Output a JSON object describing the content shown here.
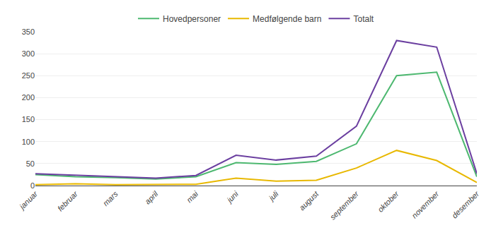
{
  "chart_data": {
    "type": "line",
    "categories": [
      "januar",
      "februar",
      "mars",
      "april",
      "mai",
      "juni",
      "juli",
      "august",
      "september",
      "oktober",
      "november",
      "desember"
    ],
    "series": [
      {
        "name": "Hovedpersoner",
        "color": "#4db870",
        "values": [
          25,
          20,
          18,
          15,
          20,
          52,
          48,
          55,
          95,
          250,
          258,
          20
        ]
      },
      {
        "name": "Medfølgende barn",
        "color": "#e8b800",
        "values": [
          2,
          4,
          2,
          2,
          3,
          17,
          10,
          12,
          40,
          80,
          57,
          7
        ]
      },
      {
        "name": "Totalt",
        "color": "#6b3fa0",
        "values": [
          27,
          24,
          20,
          17,
          23,
          69,
          58,
          67,
          135,
          330,
          315,
          27
        ]
      }
    ],
    "ylim": [
      0,
      350
    ],
    "yticks": [
      0,
      50,
      100,
      150,
      200,
      250,
      300,
      350
    ],
    "grid": true,
    "legend": "top"
  }
}
